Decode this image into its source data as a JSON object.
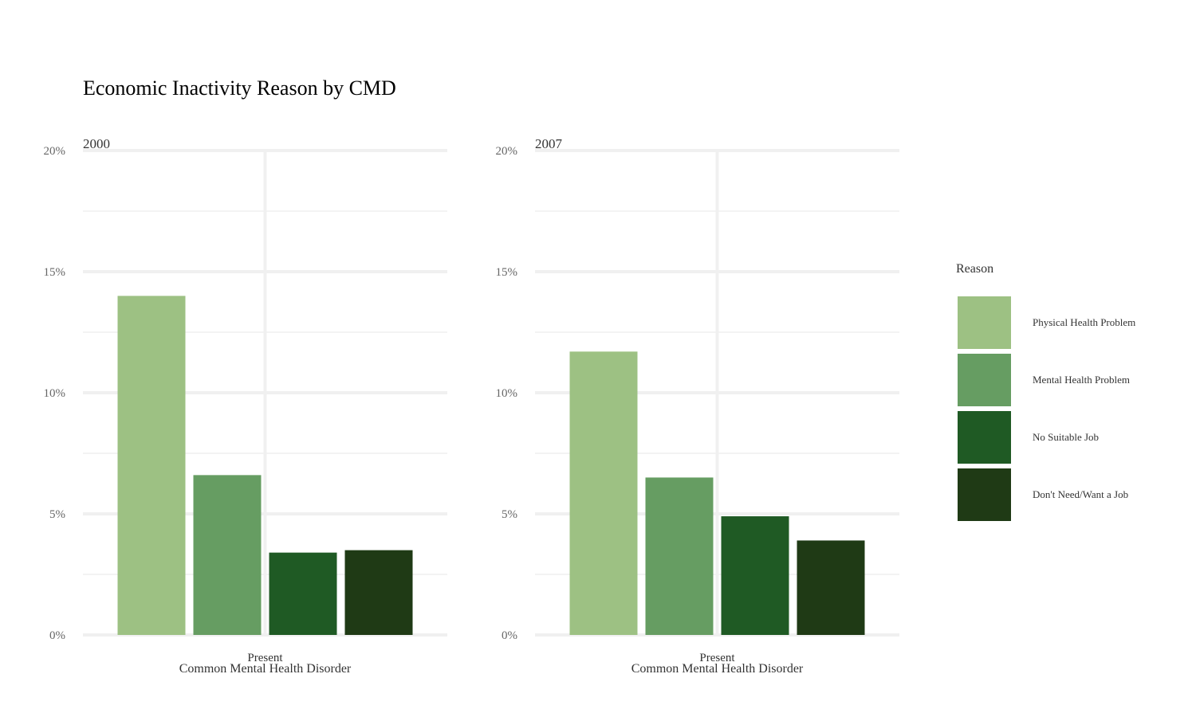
{
  "chart_data": {
    "type": "bar",
    "title": "Economic Inactivity Reason by CMD",
    "xlabel": "Common Mental Health Disorder",
    "ylabel": "",
    "ylim": [
      0,
      20
    ],
    "y_ticks": [
      "0%",
      "5%",
      "10%",
      "15%",
      "20%"
    ],
    "grid": true,
    "legend": {
      "title": "Reason",
      "placement": "right",
      "entries": [
        "Physical Health Problem",
        "Mental Health Problem",
        "No Suitable Job",
        "Don't Need/Want a Job"
      ]
    },
    "colors": [
      "#9dc183",
      "#669d62",
      "#1f5a24",
      "#1f3a15"
    ],
    "panels": [
      {
        "label": "2000",
        "category": "Present",
        "series": [
          {
            "name": "Physical Health Problem",
            "value": 14.0
          },
          {
            "name": "Mental Health Problem",
            "value": 6.6
          },
          {
            "name": "No Suitable Job",
            "value": 3.4
          },
          {
            "name": "Don't Need/Want a Job",
            "value": 3.5
          }
        ]
      },
      {
        "label": "2007",
        "category": "Present",
        "series": [
          {
            "name": "Physical Health Problem",
            "value": 11.7
          },
          {
            "name": "Mental Health Problem",
            "value": 6.5
          },
          {
            "name": "No Suitable Job",
            "value": 4.9
          },
          {
            "name": "Don't Need/Want a Job",
            "value": 3.9
          }
        ]
      }
    ]
  }
}
